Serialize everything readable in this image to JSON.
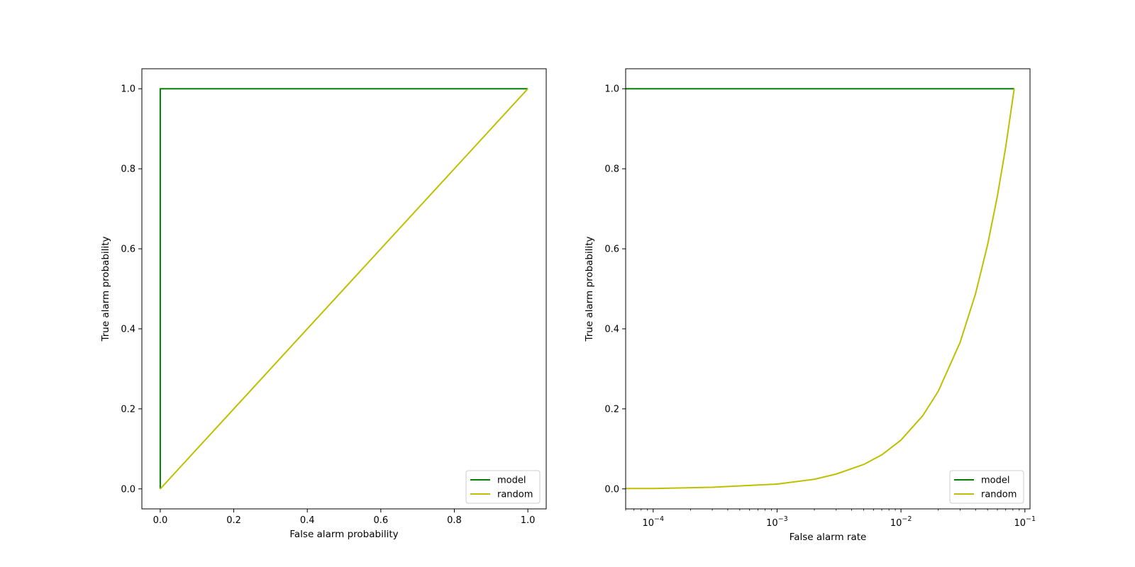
{
  "chart_data": [
    {
      "type": "line",
      "xlabel": "False alarm probability",
      "ylabel": "True alarm probability",
      "xscale": "linear",
      "xlim": [
        -0.05,
        1.05
      ],
      "ylim": [
        -0.05,
        1.05
      ],
      "xticks": [
        0.0,
        0.2,
        0.4,
        0.6,
        0.8,
        1.0
      ],
      "xtick_labels": [
        "0.0",
        "0.2",
        "0.4",
        "0.6",
        "0.8",
        "1.0"
      ],
      "yticks": [
        0.0,
        0.2,
        0.4,
        0.6,
        0.8,
        1.0
      ],
      "ytick_labels": [
        "0.0",
        "0.2",
        "0.4",
        "0.6",
        "0.8",
        "1.0"
      ],
      "grid": false,
      "legend": "lower-right",
      "series": [
        {
          "name": "model",
          "color": "#008000",
          "x": [
            0.0,
            0.0,
            1.0
          ],
          "y": [
            0.0,
            1.0,
            1.0
          ]
        },
        {
          "name": "random",
          "color": "#bfbf00",
          "x": [
            0.0,
            1.0
          ],
          "y": [
            0.0,
            1.0
          ]
        }
      ]
    },
    {
      "type": "line",
      "xlabel": "False alarm rate",
      "ylabel": "True alarm probability",
      "xscale": "log",
      "xlim": [
        6e-05,
        0.11
      ],
      "ylim": [
        -0.05,
        1.05
      ],
      "xticks": [
        0.0001,
        0.001,
        0.01,
        0.1
      ],
      "xtick_labels": [
        {
          "base": "10",
          "exp": "−4"
        },
        {
          "base": "10",
          "exp": "−3"
        },
        {
          "base": "10",
          "exp": "−2"
        },
        {
          "base": "10",
          "exp": "−1"
        }
      ],
      "yticks": [
        0.0,
        0.2,
        0.4,
        0.6,
        0.8,
        1.0
      ],
      "ytick_labels": [
        "0.0",
        "0.2",
        "0.4",
        "0.6",
        "0.8",
        "1.0"
      ],
      "grid": false,
      "legend": "lower-right",
      "series": [
        {
          "name": "model",
          "color": "#008000",
          "x": [
            6e-05,
            0.082
          ],
          "y": [
            1.0,
            1.0
          ]
        },
        {
          "name": "random",
          "color": "#bfbf00",
          "x": [
            6e-05,
            0.0001,
            0.0003,
            0.001,
            0.002,
            0.003,
            0.005,
            0.007,
            0.01,
            0.015,
            0.02,
            0.03,
            0.04,
            0.05,
            0.06,
            0.07,
            0.082
          ],
          "y": [
            0.001,
            0.001,
            0.004,
            0.012,
            0.024,
            0.037,
            0.061,
            0.085,
            0.122,
            0.183,
            0.244,
            0.366,
            0.488,
            0.61,
            0.732,
            0.854,
            1.0
          ]
        }
      ]
    }
  ]
}
